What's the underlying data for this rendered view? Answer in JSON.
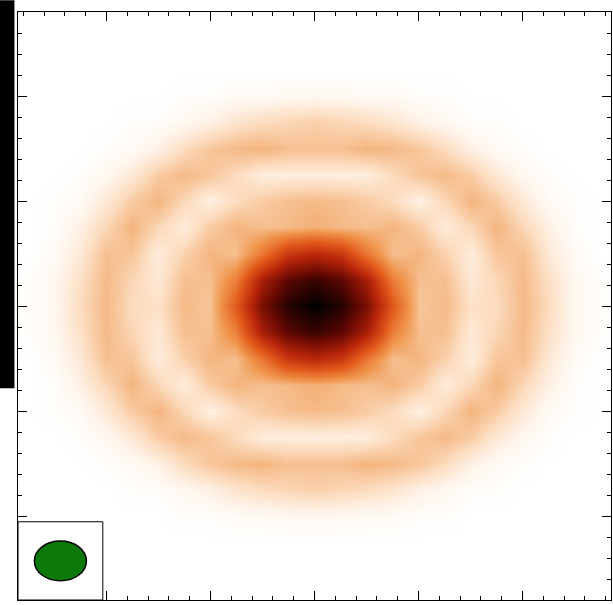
{
  "chart_data": {
    "type": "heatmap",
    "tick_labels": false,
    "xlim": [
      -2.85,
      2.85
    ],
    "ylim": [
      -2.8,
      2.8
    ],
    "xticks": [
      -2,
      -1,
      0,
      1,
      2
    ],
    "yticks": [
      -2,
      -1,
      0,
      1,
      2
    ],
    "beam": {
      "major": 0.5,
      "minor": 0.38
    },
    "x": [
      -2.75,
      -2.5,
      -2.25,
      -2,
      -1.75,
      -1.5,
      -1.25,
      -1,
      -0.75,
      -0.5,
      -0.25,
      0,
      0.25,
      0.5,
      0.75,
      1,
      1.25,
      1.5,
      1.75,
      2,
      2.25,
      2.5,
      2.75
    ],
    "y": [
      -2.75,
      -2.5,
      -2.25,
      -2,
      -1.75,
      -1.5,
      -1.25,
      -1,
      -0.75,
      -0.5,
      -0.25,
      0,
      0.25,
      0.5,
      0.75,
      1,
      1.25,
      1.5,
      1.75,
      2,
      2.25,
      2.5,
      2.75
    ],
    "z": [
      [
        0,
        0,
        0,
        0,
        0,
        0,
        0,
        0,
        0,
        0,
        0,
        0,
        0,
        0,
        0,
        0,
        0,
        0,
        0,
        0,
        0,
        0,
        0
      ],
      [
        0,
        0,
        0,
        0,
        0,
        0,
        0,
        0,
        0,
        0,
        0,
        0,
        0,
        0,
        0,
        0,
        0,
        0,
        0,
        0,
        0,
        0,
        0
      ],
      [
        0,
        0,
        0,
        0,
        0,
        0,
        0,
        0,
        0,
        0,
        0,
        0,
        0,
        0,
        0,
        0,
        0,
        0,
        0,
        0,
        0,
        0,
        0
      ],
      [
        0,
        0,
        0,
        0,
        0,
        0,
        0.01,
        0.01,
        0.02,
        0.02,
        0.03,
        0.03,
        0.03,
        0.02,
        0.02,
        0.01,
        0.01,
        0,
        0,
        0,
        0,
        0,
        0
      ],
      [
        0,
        0,
        0,
        0,
        0.01,
        0.01,
        0.03,
        0.05,
        0.08,
        0.1,
        0.11,
        0.12,
        0.11,
        0.1,
        0.08,
        0.05,
        0.03,
        0.01,
        0.01,
        0,
        0,
        0,
        0
      ],
      [
        0,
        0,
        0,
        0.01,
        0.02,
        0.05,
        0.1,
        0.14,
        0.16,
        0.17,
        0.15,
        0.15,
        0.15,
        0.17,
        0.16,
        0.14,
        0.1,
        0.05,
        0.02,
        0.01,
        0,
        0,
        0
      ],
      [
        0,
        0,
        0.01,
        0.03,
        0.07,
        0.13,
        0.16,
        0.14,
        0.1,
        0.06,
        0.06,
        0.06,
        0.06,
        0.06,
        0.1,
        0.14,
        0.16,
        0.13,
        0.07,
        0.03,
        0.01,
        0,
        0
      ],
      [
        0,
        0.01,
        0.02,
        0.07,
        0.13,
        0.17,
        0.11,
        0.05,
        0.1,
        0.13,
        0.15,
        0.16,
        0.15,
        0.13,
        0.1,
        0.05,
        0.11,
        0.17,
        0.13,
        0.07,
        0.02,
        0.01,
        0
      ],
      [
        0,
        0.01,
        0.05,
        0.11,
        0.17,
        0.11,
        0.06,
        0.13,
        0.17,
        0.15,
        0.16,
        0.18,
        0.16,
        0.15,
        0.17,
        0.13,
        0.06,
        0.11,
        0.17,
        0.11,
        0.05,
        0.01,
        0
      ],
      [
        0,
        0.02,
        0.07,
        0.15,
        0.14,
        0.06,
        0.12,
        0.17,
        0.15,
        0.32,
        0.53,
        0.59,
        0.53,
        0.32,
        0.15,
        0.17,
        0.12,
        0.06,
        0.14,
        0.15,
        0.07,
        0.02,
        0
      ],
      [
        0.01,
        0.03,
        0.09,
        0.16,
        0.11,
        0.07,
        0.15,
        0.15,
        0.3,
        0.64,
        0.82,
        0.89,
        0.82,
        0.64,
        0.3,
        0.15,
        0.15,
        0.07,
        0.11,
        0.16,
        0.09,
        0.03,
        0.01
      ],
      [
        0.01,
        0.03,
        0.1,
        0.16,
        0.1,
        0.09,
        0.16,
        0.14,
        0.41,
        0.75,
        0.93,
        1.0,
        0.93,
        0.75,
        0.41,
        0.14,
        0.16,
        0.09,
        0.1,
        0.16,
        0.1,
        0.03,
        0.01
      ],
      [
        0.01,
        0.03,
        0.09,
        0.16,
        0.11,
        0.07,
        0.15,
        0.15,
        0.3,
        0.64,
        0.82,
        0.89,
        0.82,
        0.64,
        0.3,
        0.15,
        0.15,
        0.07,
        0.11,
        0.16,
        0.09,
        0.03,
        0.01
      ],
      [
        0,
        0.02,
        0.07,
        0.15,
        0.14,
        0.06,
        0.12,
        0.17,
        0.15,
        0.32,
        0.53,
        0.59,
        0.53,
        0.32,
        0.15,
        0.17,
        0.12,
        0.06,
        0.14,
        0.15,
        0.07,
        0.02,
        0
      ],
      [
        0,
        0.01,
        0.05,
        0.11,
        0.17,
        0.11,
        0.06,
        0.13,
        0.17,
        0.15,
        0.16,
        0.18,
        0.16,
        0.15,
        0.17,
        0.13,
        0.06,
        0.11,
        0.17,
        0.11,
        0.05,
        0.01,
        0
      ],
      [
        0,
        0.01,
        0.02,
        0.07,
        0.13,
        0.17,
        0.11,
        0.05,
        0.1,
        0.13,
        0.15,
        0.16,
        0.15,
        0.13,
        0.1,
        0.05,
        0.11,
        0.17,
        0.13,
        0.07,
        0.02,
        0.01,
        0
      ],
      [
        0,
        0,
        0.01,
        0.03,
        0.07,
        0.13,
        0.16,
        0.14,
        0.1,
        0.06,
        0.06,
        0.06,
        0.06,
        0.06,
        0.1,
        0.14,
        0.16,
        0.13,
        0.07,
        0.03,
        0.01,
        0,
        0
      ],
      [
        0,
        0,
        0,
        0.01,
        0.02,
        0.05,
        0.1,
        0.14,
        0.16,
        0.17,
        0.15,
        0.15,
        0.15,
        0.17,
        0.16,
        0.14,
        0.1,
        0.05,
        0.02,
        0.01,
        0,
        0,
        0
      ],
      [
        0,
        0,
        0,
        0,
        0.01,
        0.01,
        0.03,
        0.05,
        0.08,
        0.1,
        0.11,
        0.12,
        0.11,
        0.1,
        0.08,
        0.05,
        0.03,
        0.01,
        0.01,
        0,
        0,
        0,
        0
      ],
      [
        0,
        0,
        0,
        0,
        0,
        0,
        0.01,
        0.01,
        0.02,
        0.02,
        0.03,
        0.03,
        0.03,
        0.02,
        0.02,
        0.01,
        0.01,
        0,
        0,
        0,
        0,
        0,
        0
      ],
      [
        0,
        0,
        0,
        0,
        0,
        0,
        0,
        0,
        0,
        0,
        0,
        0,
        0,
        0,
        0,
        0,
        0,
        0,
        0,
        0,
        0,
        0,
        0
      ],
      [
        0,
        0,
        0,
        0,
        0,
        0,
        0,
        0,
        0,
        0,
        0,
        0,
        0,
        0,
        0,
        0,
        0,
        0,
        0,
        0,
        0,
        0,
        0
      ],
      [
        0,
        0,
        0,
        0,
        0,
        0,
        0,
        0,
        0,
        0,
        0,
        0,
        0,
        0,
        0,
        0,
        0,
        0,
        0,
        0,
        0,
        0,
        0
      ]
    ]
  }
}
